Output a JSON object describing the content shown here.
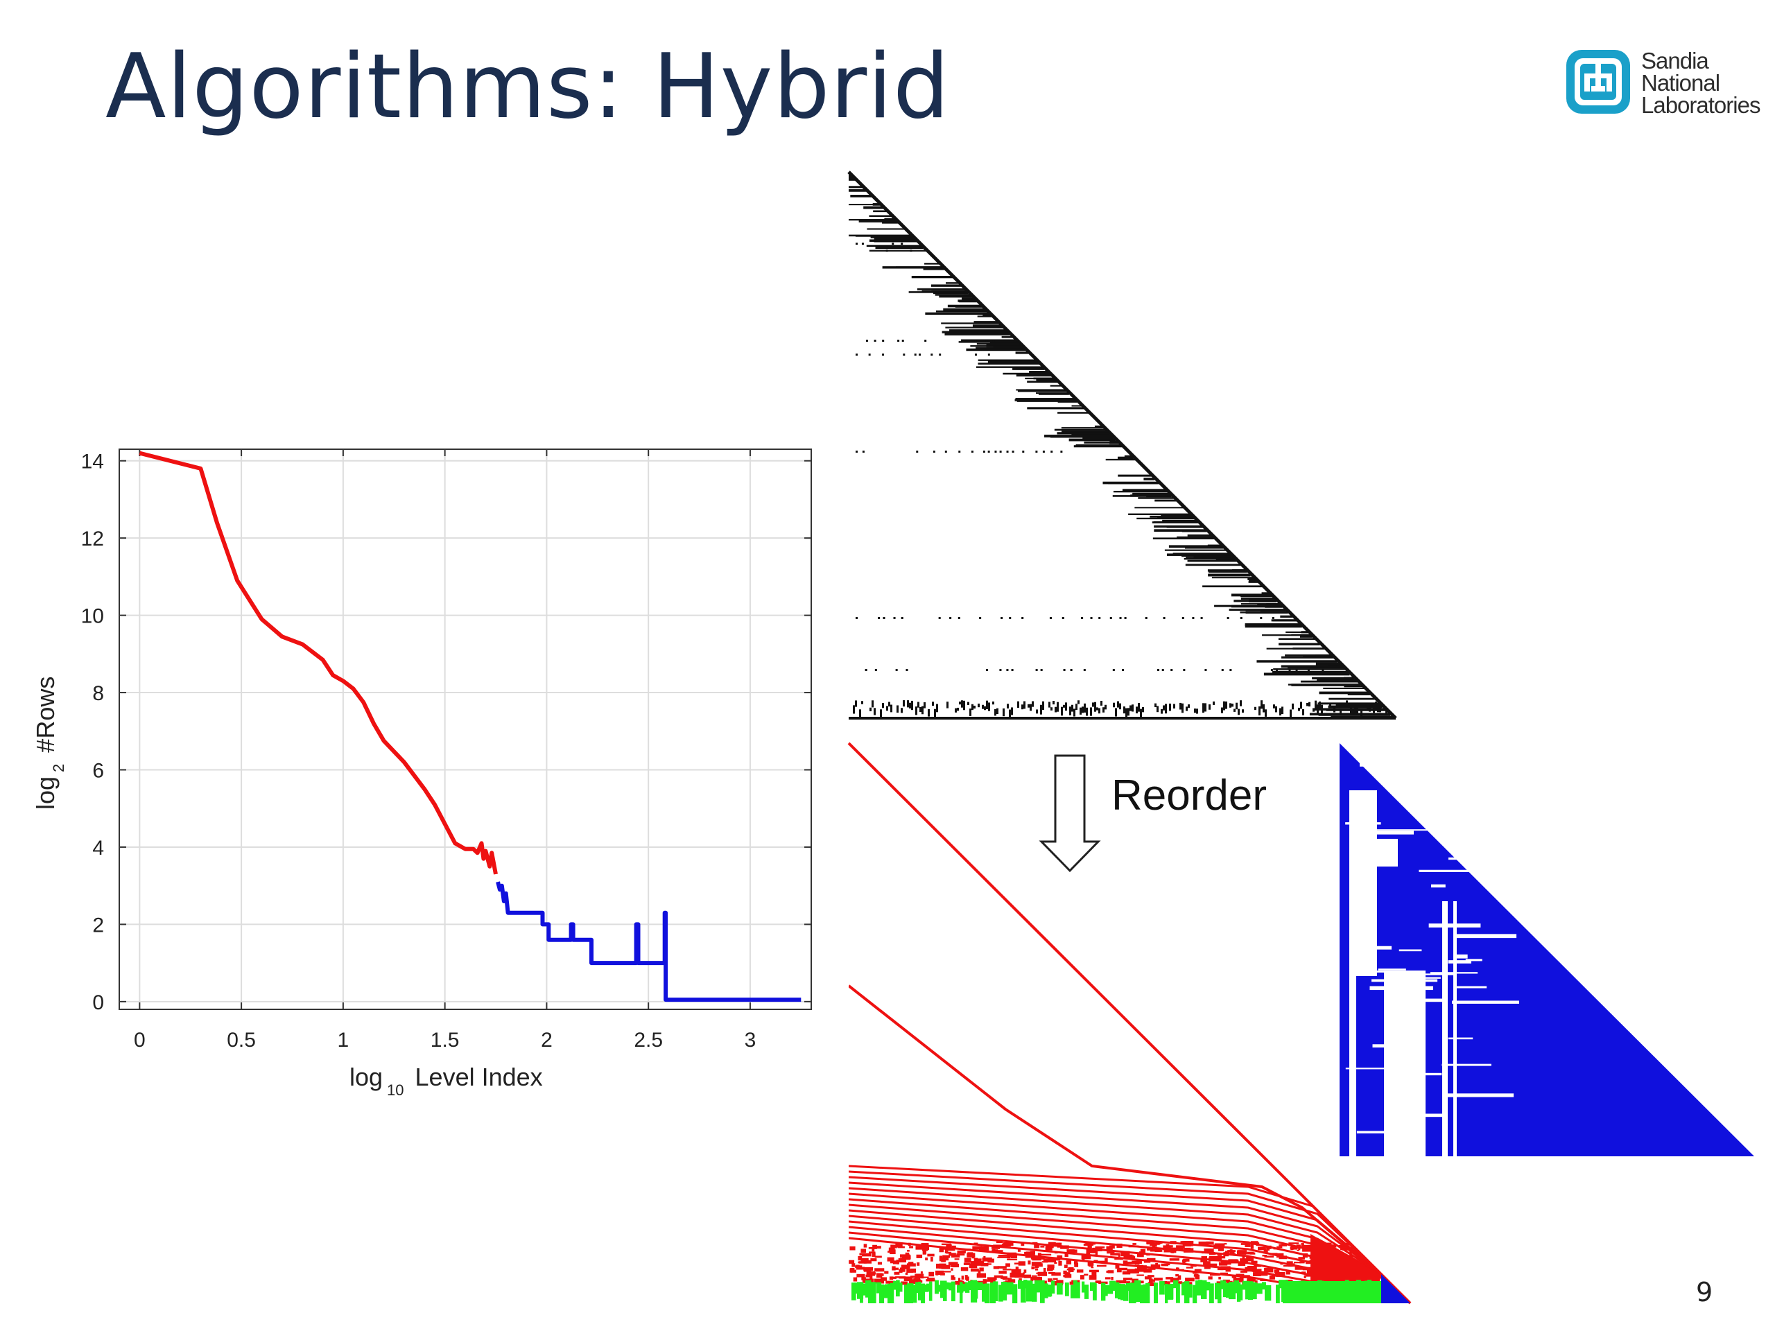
{
  "slide": {
    "title": "Algorithms: Hybrid",
    "page_number": "9",
    "reorder_label": "Reorder"
  },
  "logo": {
    "line1": "Sandia",
    "line2": "National",
    "line3": "Laboratories",
    "color": "#1aa0c9"
  },
  "colors": {
    "title": "#1b2e4f",
    "red_series": "#ee1111",
    "blue_series": "#1010dd",
    "green_band": "#22ee22",
    "sparse_black": "#111111"
  },
  "chart_data": {
    "type": "line",
    "xlabel": {
      "main": "log",
      "sub": "10",
      "rest": "Level Index"
    },
    "ylabel": {
      "main": "log",
      "sub": "2",
      "rest": "#Rows"
    },
    "xlim": [
      -0.1,
      3.3
    ],
    "ylim": [
      -0.2,
      14.3
    ],
    "xticks": [
      0,
      0.5,
      1,
      1.5,
      2,
      2.5,
      3
    ],
    "xtick_labels": [
      "0",
      "0.5",
      "1",
      "1.5",
      "2",
      "2.5",
      "3"
    ],
    "yticks": [
      0,
      2,
      4,
      6,
      8,
      10,
      12,
      14
    ],
    "ytick_labels": [
      "0",
      "2",
      "4",
      "6",
      "8",
      "10",
      "12",
      "14"
    ],
    "grid": true,
    "series": [
      {
        "color": "#ee1111",
        "x": [
          0,
          0.3,
          0.38,
          0.48,
          0.6,
          0.7,
          0.8,
          0.9,
          0.95,
          1.0,
          1.05,
          1.1,
          1.15,
          1.2,
          1.3,
          1.4,
          1.45,
          1.5,
          1.55,
          1.6,
          1.64,
          1.66,
          1.68,
          1.69,
          1.7,
          1.72,
          1.73,
          1.75
        ],
        "y": [
          14.2,
          13.8,
          12.4,
          10.9,
          9.9,
          9.45,
          9.25,
          8.85,
          8.45,
          8.3,
          8.1,
          7.75,
          7.2,
          6.75,
          6.2,
          5.5,
          5.1,
          4.6,
          4.1,
          3.95,
          3.95,
          3.85,
          4.1,
          3.7,
          3.9,
          3.5,
          3.85,
          3.3
        ]
      },
      {
        "color": "#1010dd",
        "x": [
          1.76,
          1.77,
          1.78,
          1.79,
          1.8,
          1.81,
          1.81,
          1.98,
          1.98,
          2.01,
          2.01,
          2.12,
          2.12,
          2.13,
          2.13,
          2.22,
          2.22,
          2.44,
          2.44,
          2.45,
          2.45,
          2.58,
          2.58,
          2.585,
          2.585,
          3.25
        ],
        "y": [
          3.1,
          2.9,
          3.0,
          2.6,
          2.8,
          2.3,
          2.3,
          2.3,
          2.0,
          2.0,
          1.6,
          1.6,
          2.0,
          2.0,
          1.6,
          1.6,
          1.0,
          1.0,
          2.0,
          2.0,
          1.0,
          1.0,
          2.3,
          2.3,
          0.05,
          0.05
        ]
      }
    ]
  }
}
